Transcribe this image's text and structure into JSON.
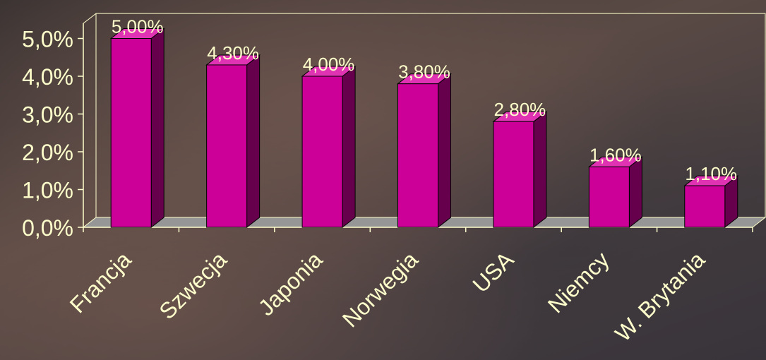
{
  "chart_data": {
    "type": "bar",
    "categories": [
      "Francja",
      "Szwecja",
      "Japonia",
      "Norwegia",
      "USA",
      "Niemcy",
      "W. Brytania"
    ],
    "values": [
      5.0,
      4.3,
      4.0,
      3.8,
      2.8,
      1.6,
      1.1
    ],
    "data_labels": [
      "5,00%",
      "4,30%",
      "4,00%",
      "3,80%",
      "2,80%",
      "1,60%",
      "1,10%"
    ],
    "y_ticks": [
      "0,0%",
      "1,0%",
      "2,0%",
      "3,0%",
      "4,0%",
      "5,0%"
    ],
    "ylim": [
      0,
      5.4
    ],
    "title": "",
    "xlabel": "",
    "ylabel": "",
    "grid": false,
    "legend": "none",
    "colors": {
      "bar_front": "#cc0099",
      "bar_side": "#66004c",
      "bar_top": "#e033b3",
      "outline": "#ffffcc",
      "floor": "#969696",
      "axis": "#ffffcc",
      "text": "#ffffcc"
    }
  }
}
